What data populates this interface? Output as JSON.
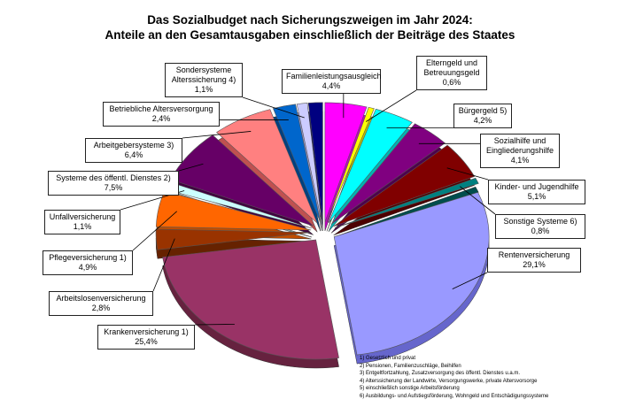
{
  "chart_data": {
    "type": "pie",
    "title": [
      "Das Sozialbudget nach Sicherungszweigen im Jahr 2024:",
      "Anteile an den Gesamtausgaben einschließlich der Beiträge des Staates"
    ],
    "slices": [
      {
        "label": [
          "Familienleistungsausgleich"
        ],
        "value_label": "4,4%",
        "value": 4.4,
        "color": "#ff00ff",
        "side": "#c000c0"
      },
      {
        "label": [
          "Elterngeld und",
          "Betreuungsgeld"
        ],
        "value_label": "0,6%",
        "value": 0.6,
        "color": "#ffff00",
        "side": "#c0c000"
      },
      {
        "label": [
          "Bürgergeld 5)"
        ],
        "value_label": "4,2%",
        "value": 4.2,
        "color": "#00ffff",
        "side": "#00b3b3"
      },
      {
        "label": [
          "Sozialhilfe und",
          "Eingliederungshilfe"
        ],
        "value_label": "4,1%",
        "value": 4.1,
        "color": "#800080",
        "side": "#4d004d"
      },
      {
        "label": [
          "Kinder- und Jugendhilfe"
        ],
        "value_label": "5,1%",
        "value": 5.1,
        "color": "#800000",
        "side": "#4d0000"
      },
      {
        "label": [
          "Sonstige Systeme 6)"
        ],
        "value_label": "0,8%",
        "value": 0.8,
        "color": "#008080",
        "side": "#004d4d"
      },
      {
        "label": [
          "Rentenversicherung"
        ],
        "value_label": "29,1%",
        "value": 29.1,
        "color": "#9999ff",
        "side": "#6666cc"
      },
      {
        "label": [
          "Krankenversicherung 1)"
        ],
        "value_label": "25,4%",
        "value": 25.4,
        "color": "#993366",
        "side": "#66223f"
      },
      {
        "label": [
          "Arbeitslosenversicherung"
        ],
        "value_label": "2,8%",
        "value": 2.8,
        "color": "#993300",
        "side": "#662200"
      },
      {
        "label": [
          "Pflegeversicherung 1)"
        ],
        "value_label": "4,9%",
        "value": 4.9,
        "color": "#ff6600",
        "side": "#c04d00"
      },
      {
        "label": [
          "Unfallversicherung"
        ],
        "value_label": "1,1%",
        "value": 1.1,
        "color": "#ccffff",
        "side": "#8fbfbf"
      },
      {
        "label": [
          "Systeme des öffentl. Dienstes 2)"
        ],
        "value_label": "7,5%",
        "value": 7.5,
        "color": "#660066",
        "side": "#400040"
      },
      {
        "label": [
          "Arbeitgebersysteme 3)"
        ],
        "value_label": "6,4%",
        "value": 6.4,
        "color": "#ff8080",
        "side": "#c05050"
      },
      {
        "label": [
          "Betriebliche Altersversorgung"
        ],
        "value_label": "2,4%",
        "value": 2.4,
        "color": "#0066cc",
        "side": "#004080"
      },
      {
        "label": [
          "Sondersysteme",
          "Alterssicherung 4)"
        ],
        "value_label": "1,1%",
        "value": 1.1,
        "color": "#ccccff",
        "side": "#9999cc"
      },
      {
        "label": [],
        "value_label": "",
        "value": 1.5,
        "color": "#000080",
        "side": "#000050"
      }
    ]
  },
  "footnotes": [
    "1) Gesetzlich und privat",
    "2) Pensionen, Familienzuschläge, Beihilfen",
    "3) Entgeltfortzahlung, Zusatzversorgung des öffentl. Dienstes u.a.m.",
    "4) Alterssicherung der Landwirte, Versorgungswerke, private Altersvorsorge",
    "5) einschließlich sonstige Arbeitsförderung",
    "6) Ausbildungs- und Aufstiegsförderung, Wohngeld und Entschädigungssysteme"
  ]
}
